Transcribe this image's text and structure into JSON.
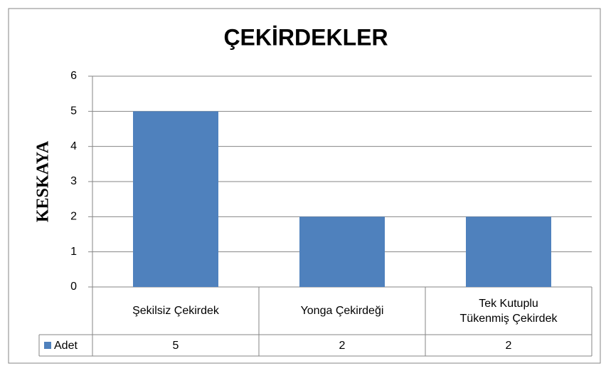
{
  "chart_data": {
    "type": "bar",
    "title": "ÇEKİRDEKLER",
    "y_label": "KESKAYA",
    "categories": [
      "Şekilsiz Çekirdek",
      "Yonga Çekirdeği",
      "Tek Kutuplu Tükenmiş Çekirdek"
    ],
    "series": [
      {
        "name": "Adet",
        "color": "#4f81bd",
        "values": [
          5,
          2,
          2
        ]
      }
    ],
    "ylim": [
      0,
      6
    ],
    "yticks": [
      0,
      1,
      2,
      3,
      4,
      5,
      6
    ],
    "grid": true,
    "data_table": true
  }
}
